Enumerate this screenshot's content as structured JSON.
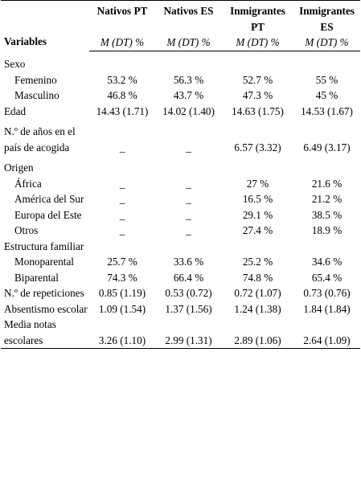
{
  "table": {
    "headers": {
      "variables": "Variables",
      "groups": [
        "Nativos PT",
        "Nativos ES",
        "Inmigrantes PT",
        "Inmigrantes ES"
      ],
      "stat_label": "M (DT) %"
    },
    "rows": {
      "sexo": {
        "label": "Sexo"
      },
      "femenino": {
        "label": "Femenino",
        "values": [
          "53.2 %",
          "56.3 %",
          "52.7 %",
          "55 %"
        ]
      },
      "masculino": {
        "label": "Masculino",
        "values": [
          "46.8 %",
          "43.7 %",
          "47.3 %",
          "45 %"
        ]
      },
      "edad": {
        "label": "Edad",
        "values": [
          "14.43 (1.71)",
          "14.02 (1.40)",
          "14.63 (1.75)",
          "14.53 (1.67)"
        ]
      },
      "anos": {
        "label": "N.º de años en el país de acogida",
        "values": [
          "_",
          "_",
          "6.57 (3.32)",
          "6.49 (3.17)"
        ]
      },
      "origen": {
        "label": "Origen"
      },
      "africa": {
        "label": "África",
        "values": [
          "_",
          "_",
          "27 %",
          "21.6 %"
        ]
      },
      "america": {
        "label": "América del Sur",
        "values": [
          "_",
          "_",
          "16.5 %",
          "21.2 %"
        ]
      },
      "europa": {
        "label": "Europa del Este",
        "values": [
          "_",
          "_",
          "29.1 %",
          "38.5 %"
        ]
      },
      "otros": {
        "label": "Otros",
        "values": [
          "_",
          "_",
          "27.4 %",
          "18.9 %"
        ]
      },
      "estructura": {
        "label": "Estructura familiar"
      },
      "monoparental": {
        "label": "Monoparental",
        "values": [
          "25.7 %",
          "33.6 %",
          "25.2 %",
          "34.6 %"
        ]
      },
      "biparental": {
        "label": "Biparental",
        "values": [
          "74.3 %",
          "66.4 %",
          "74.8 %",
          "65.4 %"
        ]
      },
      "repeticiones": {
        "label": "N.º de repeticiones",
        "values": [
          "0.85 (1.19)",
          "0.53 (0.72)",
          "0.72 (1.07)",
          "0.73 (0.76)"
        ]
      },
      "absentismo": {
        "label": "Absentismo escolar",
        "values": [
          "1.09 (1.54)",
          "1.37 (1.56)",
          "1.24 (1.38)",
          "1.84 (1.84)"
        ]
      },
      "media": {
        "label": "Media notas escolares",
        "values": [
          "3.26 (1.10)",
          "2.99 (1.31)",
          "2.89 (1.06)",
          "2.64 (1.09)"
        ]
      }
    }
  }
}
